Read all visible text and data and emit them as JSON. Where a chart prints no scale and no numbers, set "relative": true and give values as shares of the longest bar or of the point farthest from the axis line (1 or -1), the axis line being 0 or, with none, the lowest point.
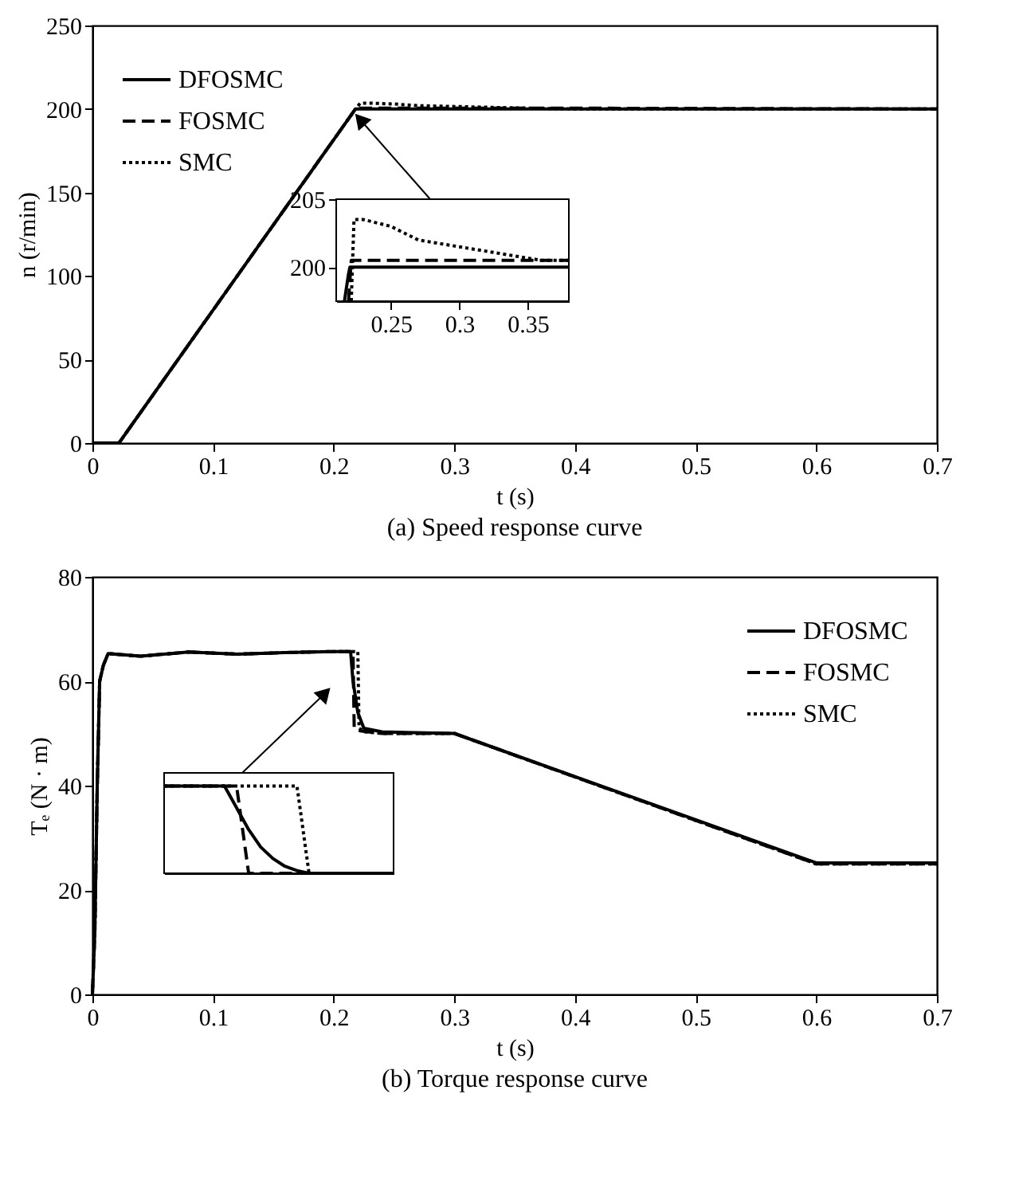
{
  "chart_data": [
    {
      "type": "line",
      "title": "(a) Speed response curve",
      "xlabel": "t (s)",
      "ylabel": "n (r/min)",
      "xlim": [
        0,
        0.7
      ],
      "ylim": [
        0,
        250
      ],
      "xticks": [
        0,
        0.1,
        0.2,
        0.3,
        0.4,
        0.5,
        0.6,
        0.7
      ],
      "yticks": [
        0,
        50,
        100,
        150,
        200,
        250
      ],
      "grid": false,
      "legend": "top left",
      "series": [
        {
          "name": "DFOSMC",
          "color": "#000000",
          "line_style": "solid",
          "x": [
            0,
            0.022,
            0.218,
            0.7
          ],
          "values": [
            0,
            0,
            200,
            200
          ]
        },
        {
          "name": "FOSMC",
          "color": "#000000",
          "line_style": "dashed",
          "x": [
            0,
            0.022,
            0.218,
            0.221,
            0.4,
            0.7
          ],
          "values": [
            0,
            0,
            200,
            200.5,
            200.5,
            200
          ]
        },
        {
          "name": "SMC",
          "color": "#000000",
          "line_style": "dotted",
          "x": [
            0,
            0.022,
            0.218,
            0.222,
            0.23,
            0.25,
            0.27,
            0.3,
            0.33,
            0.36,
            0.4,
            0.7
          ],
          "values": [
            0,
            0,
            200,
            203.5,
            203.5,
            203,
            202,
            201.5,
            201,
            200.5,
            200,
            200
          ]
        }
      ]
    },
    {
      "type": "line",
      "xlim": [
        0.21,
        0.38
      ],
      "ylim": [
        197.5,
        205
      ],
      "xticks": [
        0.25,
        0.3,
        0.35
      ],
      "yticks": [
        200,
        205
      ],
      "grid": false,
      "legend": false,
      "series": [
        {
          "color": "#000000",
          "line_style": "solid",
          "x": [
            0.216,
            0.219,
            0.22,
            0.38
          ],
          "values": [
            197.5,
            199.5,
            200,
            200
          ]
        },
        {
          "color": "#000000",
          "line_style": "dashed",
          "x": [
            0.219,
            0.221,
            0.38
          ],
          "values": [
            197.5,
            200.5,
            200.5
          ]
        },
        {
          "color": "#000000",
          "line_style": "dotted",
          "x": [
            0.221,
            0.223,
            0.23,
            0.25,
            0.27,
            0.3,
            0.33,
            0.36,
            0.38
          ],
          "values": [
            197.5,
            203.5,
            203.5,
            203,
            202,
            201.5,
            201,
            200.5,
            200.5
          ]
        }
      ]
    },
    {
      "type": "line",
      "title": "(b) Torque response curve",
      "xlabel": "t (s)",
      "ylabel": "Tₑ (N · m)",
      "xlim": [
        0,
        0.7
      ],
      "ylim": [
        0,
        80
      ],
      "xticks": [
        0,
        0.1,
        0.2,
        0.3,
        0.4,
        0.5,
        0.6,
        0.7
      ],
      "yticks": [
        0,
        20,
        40,
        60,
        80
      ],
      "grid": false,
      "legend": "top right",
      "series": [
        {
          "name": "DFOSMC",
          "color": "#000000",
          "line_style": "solid",
          "x": [
            0,
            0.002,
            0.004,
            0.006,
            0.009,
            0.013,
            0.04,
            0.08,
            0.12,
            0.16,
            0.2,
            0.214,
            0.216,
            0.22,
            0.225,
            0.24,
            0.3,
            0.6,
            0.7
          ],
          "values": [
            0,
            12,
            40,
            60,
            63,
            65.3,
            64.8,
            65.6,
            65.2,
            65.5,
            65.7,
            65.7,
            60,
            54,
            51,
            50.3,
            50,
            25.2,
            25.2
          ]
        },
        {
          "name": "FOSMC",
          "color": "#000000",
          "line_style": "dashed",
          "x": [
            0,
            0.002,
            0.004,
            0.006,
            0.009,
            0.013,
            0.04,
            0.08,
            0.12,
            0.16,
            0.2,
            0.216,
            0.217,
            0.222,
            0.24,
            0.3,
            0.6,
            0.7
          ],
          "values": [
            0,
            12,
            40,
            60,
            63,
            65.3,
            64.8,
            65.6,
            65.2,
            65.5,
            65.7,
            65.7,
            51,
            50.5,
            50,
            50,
            25,
            25
          ]
        },
        {
          "name": "SMC",
          "color": "#000000",
          "line_style": "dotted",
          "x": [
            0,
            0.002,
            0.004,
            0.006,
            0.009,
            0.013,
            0.04,
            0.08,
            0.12,
            0.16,
            0.2,
            0.22,
            0.221,
            0.226,
            0.24,
            0.3,
            0.6,
            0.7
          ],
          "values": [
            0,
            12,
            40,
            60,
            63,
            65.3,
            64.8,
            65.6,
            65.2,
            65.5,
            65.7,
            65.7,
            51,
            50.3,
            50,
            50,
            25,
            25
          ]
        }
      ]
    },
    {
      "type": "line",
      "relative": true,
      "legend": false,
      "grid": false,
      "categories": [
        null,
        null,
        null,
        null,
        null,
        null,
        null,
        null,
        null,
        null,
        null,
        null,
        null,
        null,
        null,
        null,
        null,
        null,
        null,
        null
      ],
      "series": [
        {
          "color": "#000000",
          "line_style": "solid",
          "values": [
            1,
            1,
            1,
            1,
            1,
            1,
            0.75,
            0.5,
            0.3,
            0.17,
            0.08,
            0.03,
            0,
            0,
            0,
            0,
            0,
            0,
            0,
            0
          ]
        },
        {
          "color": "#000000",
          "line_style": "dashed",
          "values": [
            1,
            1,
            1,
            1,
            1,
            1,
            1,
            0,
            0,
            0,
            0,
            0,
            0,
            0,
            0,
            0,
            0,
            0,
            0,
            0
          ]
        },
        {
          "color": "#000000",
          "line_style": "dotted",
          "values": [
            1,
            1,
            1,
            1,
            1,
            1,
            1,
            1,
            1,
            1,
            1,
            1,
            0,
            0,
            0,
            0,
            0,
            0,
            0,
            0
          ]
        }
      ]
    }
  ]
}
